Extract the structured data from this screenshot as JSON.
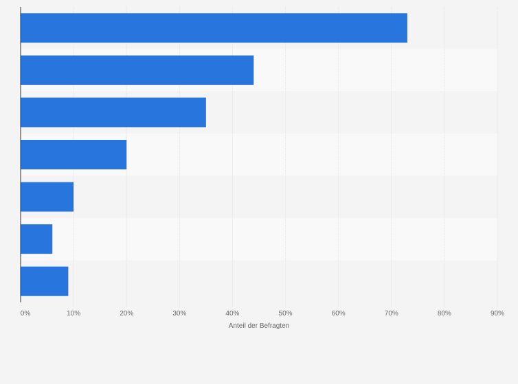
{
  "chart_data": {
    "type": "bar",
    "orientation": "horizontal",
    "categories": [
      "",
      "",
      "",
      "",
      "",
      "",
      ""
    ],
    "values": [
      73,
      44,
      35,
      20,
      10,
      6,
      9
    ],
    "xlabel": "Anteil der Befragten",
    "ylabel": "",
    "xlim": [
      0,
      90
    ],
    "x_ticks": [
      0,
      10,
      20,
      30,
      40,
      50,
      60,
      70,
      80,
      90
    ],
    "tick_format": "{v}%",
    "grid": true,
    "legend": "none",
    "colors": {
      "bar": "#2876dd",
      "band_light": "#f9f9f9",
      "band_dark": "#f4f4f4",
      "grid": "#e2e2e2",
      "axis": "#333333"
    }
  }
}
